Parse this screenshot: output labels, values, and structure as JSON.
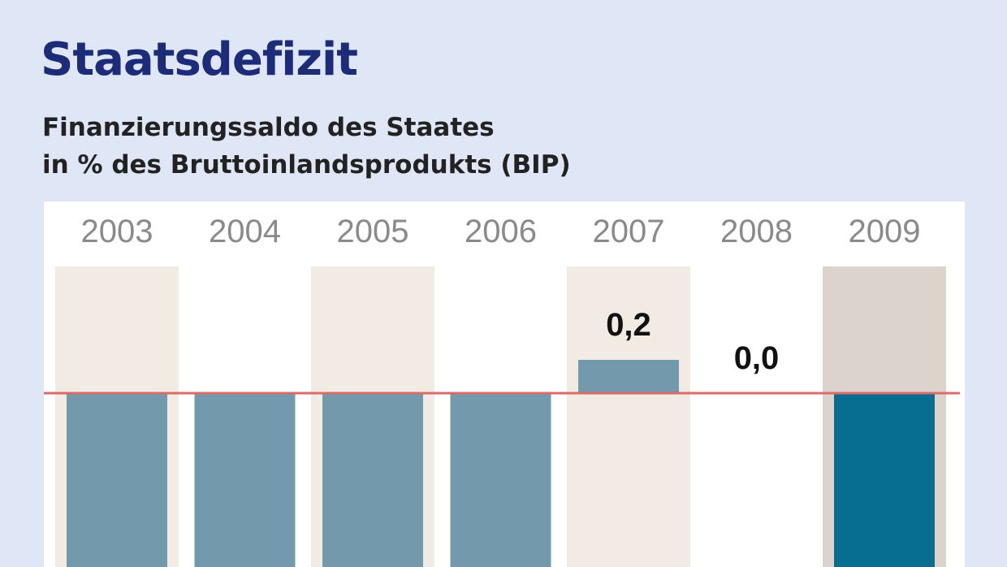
{
  "title": "Staatsdefizit",
  "subtitle_lines": [
    "Finanzierungssaldo des Staates",
    "in % des Bruttoinlandsprodukts (BIP)"
  ],
  "colors": {
    "background": "#dfe6f6",
    "title": "#1d2c78",
    "bar": "#7399ad",
    "bar_highlight": "#076d91",
    "shade": "#f1ebe4",
    "shade_highlight": "#dcd4cc",
    "zero_line": "#d96c6a",
    "year_label": "#8a8a8a"
  },
  "chart_data": {
    "type": "bar",
    "categories": [
      "2003",
      "2004",
      "2005",
      "2006",
      "2007",
      "2008",
      "2009"
    ],
    "values": [
      null,
      null,
      null,
      null,
      0.2,
      0.0,
      null
    ],
    "value_labels": [
      "",
      "",
      "",
      "",
      "0,2",
      "0,0",
      ""
    ],
    "highlight_category": "2009",
    "title": "Staatsdefizit",
    "subtitle": "Finanzierungssaldo des Staates in % des Bruttoinlandsprodukts (BIP)",
    "xlabel": "",
    "ylabel": "",
    "notes": "Bars for 2003-2006 and 2009 are negative and extend below the visible frame; their values are not visible.",
    "grid": false,
    "legend": "none"
  }
}
